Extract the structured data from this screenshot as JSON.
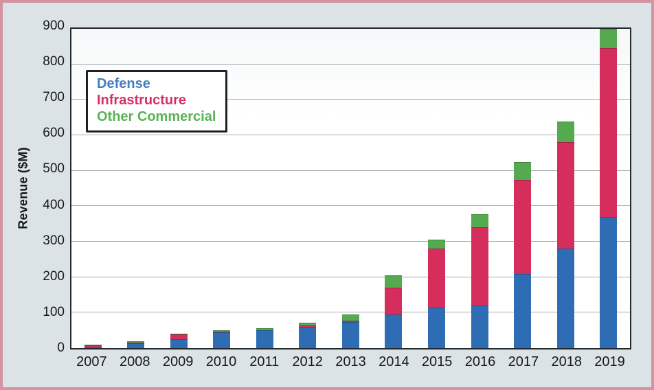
{
  "chart_data": {
    "type": "bar",
    "stacked": true,
    "title": "",
    "xlabel": "",
    "ylabel": "Revenue ($M)",
    "ylim": [
      0,
      900
    ],
    "ytick_step": 100,
    "grid": "horizontal",
    "legend_position": "top-left",
    "categories": [
      "2007",
      "2008",
      "2009",
      "2010",
      "2011",
      "2012",
      "2013",
      "2014",
      "2015",
      "2016",
      "2017",
      "2018",
      "2019"
    ],
    "series": [
      {
        "name": "Defense",
        "color": "#2e6db4",
        "legend_color": "#447dc0",
        "values": [
          3,
          14,
          25,
          45,
          50,
          60,
          73,
          95,
          115,
          120,
          210,
          280,
          370
        ]
      },
      {
        "name": "Infrastructure",
        "color": "#d62e5c",
        "legend_color": "#d63062",
        "values": [
          5,
          2,
          13,
          1,
          1,
          3,
          4,
          75,
          165,
          220,
          265,
          300,
          475
        ]
      },
      {
        "name": "Other Commercial",
        "color": "#55a94f",
        "legend_color": "#58b357",
        "values": [
          1,
          4,
          3,
          4,
          5,
          8,
          18,
          35,
          25,
          37,
          50,
          58,
          55
        ]
      }
    ]
  },
  "palette": {
    "background": "#dce3e6",
    "outer_border": "#d295a0",
    "plot_border": "#24272b",
    "gridline": "#a3a9ac",
    "tick_text": "#15181c",
    "legend_border": "#1c2126",
    "legend_background": "#ffffff"
  }
}
